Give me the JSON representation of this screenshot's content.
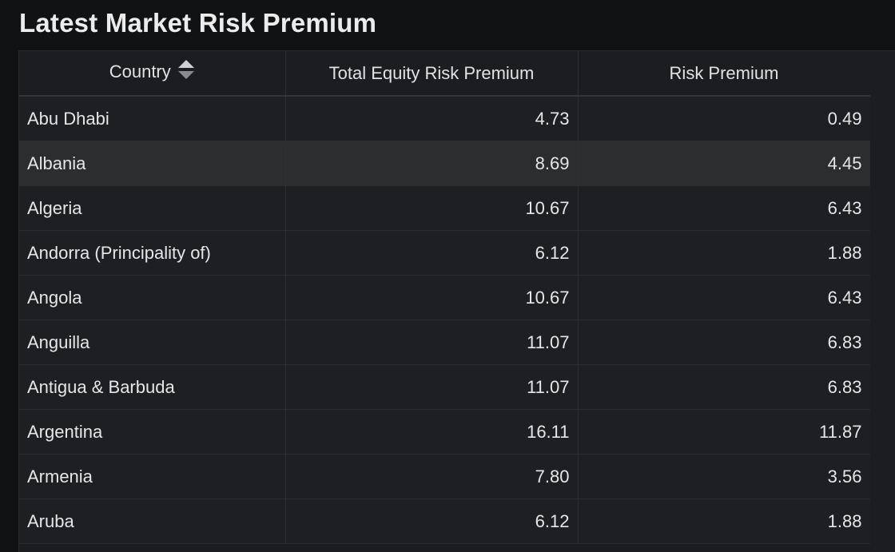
{
  "panel": {
    "title": "Latest Market Risk Premium"
  },
  "table": {
    "columns": [
      "Country",
      "Total Equity Risk Premium",
      "Risk Premium"
    ],
    "rows": [
      {
        "country": "Abu Dhabi",
        "total": "4.73",
        "risk": "0.49"
      },
      {
        "country": "Albania",
        "total": "8.69",
        "risk": "4.45"
      },
      {
        "country": "Algeria",
        "total": "10.67",
        "risk": "6.43"
      },
      {
        "country": "Andorra (Principality of)",
        "total": "6.12",
        "risk": "1.88"
      },
      {
        "country": "Angola",
        "total": "10.67",
        "risk": "6.43"
      },
      {
        "country": "Anguilla",
        "total": "11.07",
        "risk": "6.83"
      },
      {
        "country": "Antigua & Barbuda",
        "total": "11.07",
        "risk": "6.83"
      },
      {
        "country": "Argentina",
        "total": "16.11",
        "risk": "11.87"
      },
      {
        "country": "Armenia",
        "total": "7.80",
        "risk": "3.56"
      },
      {
        "country": "Aruba",
        "total": "6.12",
        "risk": "1.88"
      }
    ],
    "highlighted_row": 1
  },
  "icons": {
    "sort": "sort-both-icon"
  }
}
